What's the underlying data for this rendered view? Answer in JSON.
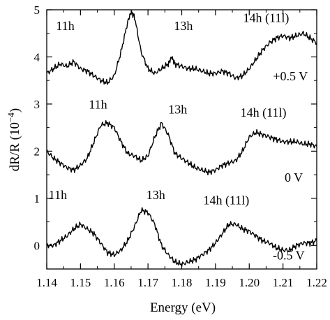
{
  "chart_data": {
    "type": "line",
    "xlabel": "Energy (eV)",
    "ylabel": "dR/R (10⁻⁴)",
    "ylabel_parts": {
      "text": "dR/R (10",
      "exp": "−4",
      "close": ")"
    },
    "xlim": [
      1.14,
      1.22
    ],
    "ylim": [
      -0.5,
      5
    ],
    "x_ticks": [
      1.14,
      1.15,
      1.16,
      1.17,
      1.18,
      1.19,
      1.2,
      1.21,
      1.22
    ],
    "x_tick_labels": [
      "1.14",
      "1.15",
      "1.16",
      "1.17",
      "1.18",
      "1.19",
      "1.20",
      "1.21",
      "1.22"
    ],
    "y_ticks": [
      0,
      1,
      2,
      3,
      4,
      5
    ],
    "y_tick_labels": [
      "0",
      "1",
      "2",
      "3",
      "4",
      "5"
    ],
    "grid": false,
    "legend": "none",
    "series": [
      {
        "name": "+0.5 V",
        "x": [
          1.14,
          1.142,
          1.144,
          1.146,
          1.148,
          1.15,
          1.152,
          1.154,
          1.156,
          1.158,
          1.16,
          1.162,
          1.164,
          1.165,
          1.166,
          1.168,
          1.17,
          1.172,
          1.174,
          1.176,
          1.177,
          1.178,
          1.18,
          1.182,
          1.184,
          1.186,
          1.188,
          1.19,
          1.192,
          1.194,
          1.196,
          1.198,
          1.2,
          1.202,
          1.204,
          1.206,
          1.208,
          1.21,
          1.212,
          1.214,
          1.216,
          1.218,
          1.22
        ],
        "y": [
          3.65,
          3.75,
          3.85,
          3.8,
          3.9,
          3.75,
          3.7,
          3.6,
          3.5,
          3.45,
          3.6,
          4.1,
          4.75,
          4.95,
          4.85,
          4.1,
          3.75,
          3.65,
          3.75,
          3.85,
          4.0,
          3.85,
          3.8,
          3.75,
          3.75,
          3.7,
          3.65,
          3.65,
          3.7,
          3.65,
          3.55,
          3.6,
          3.75,
          3.95,
          4.15,
          4.3,
          4.4,
          4.45,
          4.4,
          4.45,
          4.5,
          4.4,
          4.3
        ]
      },
      {
        "name": "0 V",
        "x": [
          1.14,
          1.142,
          1.144,
          1.146,
          1.148,
          1.15,
          1.152,
          1.154,
          1.156,
          1.158,
          1.16,
          1.162,
          1.164,
          1.166,
          1.168,
          1.17,
          1.172,
          1.174,
          1.176,
          1.178,
          1.18,
          1.182,
          1.184,
          1.186,
          1.188,
          1.19,
          1.192,
          1.194,
          1.196,
          1.198,
          1.2,
          1.202,
          1.204,
          1.206,
          1.208,
          1.21,
          1.212,
          1.214,
          1.216,
          1.218,
          1.22
        ],
        "y": [
          2.0,
          1.85,
          1.75,
          1.65,
          1.6,
          1.7,
          1.85,
          2.2,
          2.55,
          2.6,
          2.5,
          2.2,
          1.95,
          1.9,
          1.8,
          1.9,
          2.3,
          2.6,
          2.35,
          1.95,
          1.85,
          1.75,
          1.65,
          1.6,
          1.55,
          1.6,
          1.7,
          1.75,
          1.8,
          2.0,
          2.3,
          2.4,
          2.35,
          2.3,
          2.25,
          2.2,
          2.2,
          2.2,
          2.15,
          2.15,
          2.1
        ]
      },
      {
        "name": "-0.5 V",
        "x": [
          1.14,
          1.142,
          1.144,
          1.146,
          1.148,
          1.15,
          1.152,
          1.154,
          1.156,
          1.158,
          1.16,
          1.162,
          1.164,
          1.166,
          1.168,
          1.17,
          1.172,
          1.174,
          1.176,
          1.178,
          1.18,
          1.182,
          1.184,
          1.186,
          1.188,
          1.19,
          1.192,
          1.194,
          1.196,
          1.198,
          1.2,
          1.202,
          1.204,
          1.206,
          1.208,
          1.21,
          1.212,
          1.214,
          1.216,
          1.218,
          1.22
        ],
        "y": [
          0.0,
          0.0,
          0.1,
          0.2,
          0.35,
          0.45,
          0.35,
          0.25,
          0.05,
          -0.15,
          -0.2,
          -0.1,
          0.1,
          0.4,
          0.75,
          0.7,
          0.45,
          0.0,
          -0.2,
          -0.35,
          -0.4,
          -0.35,
          -0.3,
          -0.2,
          -0.1,
          0.05,
          0.25,
          0.45,
          0.45,
          0.35,
          0.3,
          0.2,
          0.1,
          0.05,
          -0.05,
          -0.1,
          -0.1,
          0.0,
          0.05,
          0.05,
          0.1
        ]
      }
    ],
    "annotations": [
      {
        "text": "11h",
        "x": 1.1455,
        "y": 4.57
      },
      {
        "text": "13h",
        "x": 1.1805,
        "y": 4.57
      },
      {
        "text": "14h (11l)",
        "x": 1.205,
        "y": 4.74
      },
      {
        "text": "+0.5 V",
        "x": 1.2122,
        "y": 3.5
      },
      {
        "text": "11h",
        "x": 1.1552,
        "y": 2.9
      },
      {
        "text": "13h",
        "x": 1.1788,
        "y": 2.8
      },
      {
        "text": "14h (11l)",
        "x": 1.2042,
        "y": 2.73
      },
      {
        "text": "0 V",
        "x": 1.2132,
        "y": 1.35
      },
      {
        "text": "11h",
        "x": 1.1433,
        "y": 0.98
      },
      {
        "text": "13h",
        "x": 1.1723,
        "y": 0.98
      },
      {
        "text": "14h (11l)",
        "x": 1.1932,
        "y": 0.87
      },
      {
        "text": "-0.5 V",
        "x": 1.2117,
        "y": -0.3
      }
    ]
  }
}
